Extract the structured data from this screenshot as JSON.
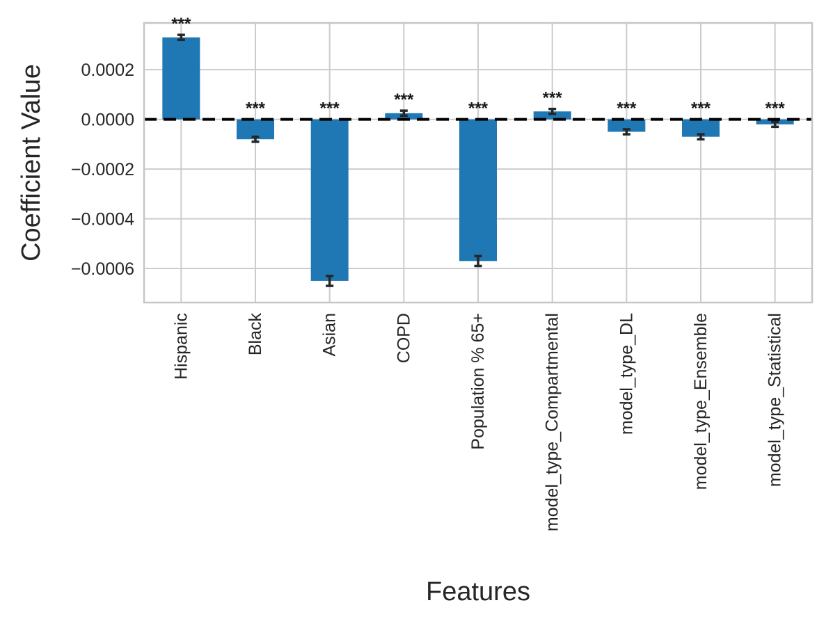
{
  "figure": {
    "background_color": "#ffffff"
  },
  "chart_data": {
    "type": "bar",
    "title": "",
    "xlabel": "Features",
    "ylabel": "Coefficient Value",
    "categories": [
      "Hispanic",
      "Black",
      "Asian",
      "COPD",
      "Population % 65+",
      "model_type_Compartmental",
      "model_type_DL",
      "model_type_Ensemble",
      "model_type_Statistical"
    ],
    "values": [
      0.00033,
      -8e-05,
      -0.00065,
      2.5e-05,
      -0.00057,
      3.2e-05,
      -5e-05,
      -7e-05,
      -2e-05
    ],
    "errors": [
      1e-05,
      1e-05,
      2e-05,
      1e-05,
      2e-05,
      1e-05,
      1e-05,
      1e-05,
      1e-05
    ],
    "significance": [
      "***",
      "***",
      "***",
      "***",
      "***",
      "***",
      "***",
      "***",
      "***"
    ],
    "yticks": [
      0.0002,
      0.0,
      -0.0002,
      -0.0004,
      -0.0006
    ],
    "ytick_labels": [
      "0.0002",
      "0.0000",
      "−0.0002",
      "−0.0004",
      "−0.0006"
    ],
    "ylim": [
      -0.000737,
      0.000388
    ],
    "grid": true,
    "legend_position": "none",
    "zero_line_style": "dashed",
    "zero_line_color": "#000000",
    "bar_color": "#1f77b4",
    "error_bar_color": "#262626",
    "grid_color": "#cccccc",
    "spine_color": "#c6c6c6",
    "text_color": "#262626"
  }
}
